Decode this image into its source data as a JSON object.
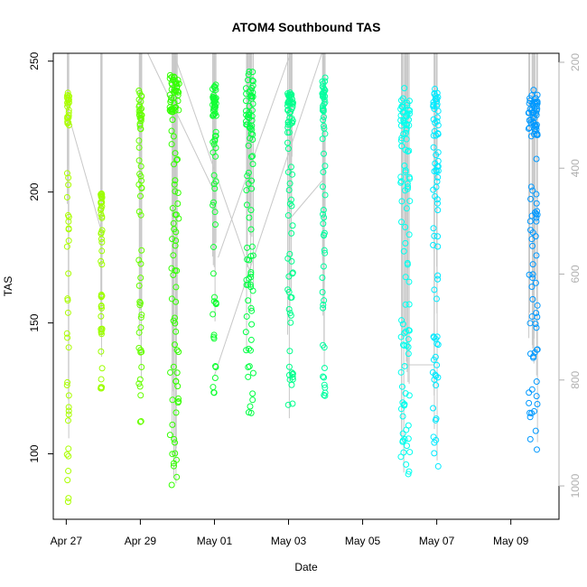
{
  "chart_data": {
    "type": "scatter",
    "title": "ATOM4 Southbound TAS",
    "xlabel": "Date",
    "ylabel": "TAS",
    "x_tick_labels": [
      "Apr 27",
      "Apr 29",
      "May 01",
      "May 03",
      "May 05",
      "May 07",
      "May 09"
    ],
    "x_tick_days": [
      0,
      2,
      4,
      6,
      8,
      10,
      12
    ],
    "xlim_days": [
      -0.35,
      13.3
    ],
    "ylim": [
      75,
      253
    ],
    "y_ticks": [
      100,
      150,
      200,
      250
    ],
    "right_axis": {
      "ticks": [
        200,
        400,
        600,
        800,
        1000
      ],
      "lim": [
        1063,
        183
      ],
      "color": "#b0b0b0"
    },
    "grid": false,
    "marker": "open-circle",
    "line_color": "#c8c8c8",
    "flights": [
      {
        "day": 0.05,
        "color": "#aaff00",
        "top": 238,
        "bottom": 81,
        "band": [
          225,
          238
        ],
        "spread": 0.06
      },
      {
        "day": 0.95,
        "color": "#9dff00",
        "top": 201,
        "bottom": 123,
        "band": [
          190,
          200
        ],
        "spread": 0.04
      },
      {
        "day": 2.0,
        "color": "#66ff00",
        "top": 239,
        "bottom": 111,
        "band": [
          225,
          238
        ],
        "spread": 0.08
      },
      {
        "day": 2.92,
        "color": "#33ff00",
        "top": 246,
        "bottom": 88,
        "band": [
          230,
          245
        ],
        "spread": 0.25
      },
      {
        "day": 4.0,
        "color": "#11ff33",
        "top": 243,
        "bottom": 123,
        "band": [
          228,
          242
        ],
        "spread": 0.1
      },
      {
        "day": 4.95,
        "color": "#00ff44",
        "top": 247,
        "bottom": 115,
        "band": [
          225,
          246
        ],
        "spread": 0.2
      },
      {
        "day": 6.05,
        "color": "#00ff8c",
        "top": 239,
        "bottom": 113,
        "band": [
          225,
          238
        ],
        "spread": 0.15
      },
      {
        "day": 6.95,
        "color": "#00ffa0",
        "top": 245,
        "bottom": 120,
        "band": [
          230,
          244
        ],
        "spread": 0.08
      },
      {
        "day": 9.15,
        "color": "#00ffee",
        "top": 240,
        "bottom": 92,
        "band": [
          215,
          238
        ],
        "spread": 0.25
      },
      {
        "day": 9.97,
        "color": "#00eaff",
        "top": 240,
        "bottom": 94,
        "band": [
          220,
          238
        ],
        "spread": 0.15
      },
      {
        "day": 12.6,
        "color": "#0099ff",
        "top": 242,
        "bottom": 101,
        "band": [
          220,
          235
        ],
        "spread": 0.25
      }
    ]
  }
}
